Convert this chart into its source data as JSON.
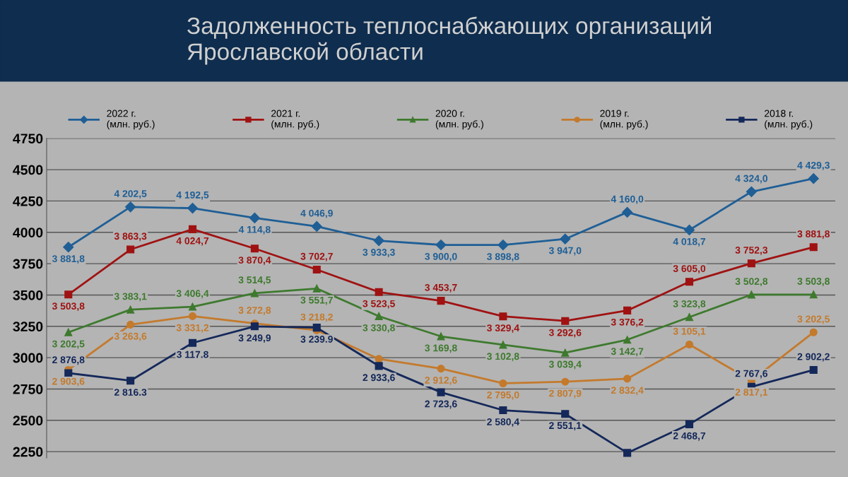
{
  "chart_data": {
    "type": "line",
    "title": "Задолженность теплоснабжающих организаций\nЯрославской области",
    "categories": [
      null,
      null,
      null,
      null,
      null,
      null,
      null,
      null,
      null,
      null,
      null,
      null,
      null
    ],
    "ylim": [
      2200,
      4750
    ],
    "yticks": [
      2250,
      2500,
      2750,
      3000,
      3250,
      3500,
      3750,
      4000,
      4250,
      4500,
      4750
    ],
    "grid": "y",
    "legend": "top",
    "line_style": "solid",
    "series": [
      {
        "name": "2022 г.\n(млн. руб.)",
        "color": "#1f5f96",
        "marker": "diamond",
        "values": [
          3881.8,
          4202.5,
          4192.5,
          4114.8,
          4046.9,
          3933.3,
          3900.0,
          3898.8,
          3947.0,
          4160.0,
          4018.7,
          4324.0,
          4429.3
        ],
        "value_labels": [
          "3 881,8",
          "4 202,5",
          "4 192,5",
          "4 114,8",
          "4 046,9",
          "3 933,3",
          "3 900,0",
          "3 898,8",
          "3 947,0",
          "4 160,0",
          "4 018,7",
          "4 324,0",
          "4 429,3"
        ]
      },
      {
        "name": "2021 г.\n(млн. руб.)",
        "color": "#a01212",
        "marker": "square",
        "values": [
          3503.8,
          3863.3,
          4024.7,
          3870.4,
          3702.7,
          3523.5,
          3453.7,
          3329.4,
          3292.6,
          3376.2,
          3605.0,
          3752.3,
          3881.8
        ],
        "value_labels": [
          "3 503,8",
          "3 863,3",
          "4 024,7",
          "3 870,4",
          "3 702,7",
          "3 523,5",
          "3 453,7",
          "3 329,4",
          "3 292,6",
          "3 376,2",
          "3 605,0",
          "3 752,3",
          "3 881,8"
        ]
      },
      {
        "name": "2020 г.\n(млн. руб.)",
        "color": "#3e7a2e",
        "marker": "triangle",
        "values": [
          3202.5,
          3383.1,
          3406.4,
          3514.5,
          3551.7,
          3330.8,
          3169.8,
          3102.8,
          3039.4,
          3142.7,
          3323.8,
          3502.8,
          3503.8
        ],
        "value_labels": [
          "3 202,5",
          "3 383,1",
          "3 406,4",
          "3 514,5",
          "3 551,7",
          "3 330,8",
          "3 169,8",
          "3 102,8",
          "3 039,4",
          "3 142,7",
          "3 323,8",
          "3 502,8",
          "3 503,8"
        ]
      },
      {
        "name": "2019 г.\n(млн. руб.)",
        "color": "#c47a2c",
        "marker": "circle",
        "values": [
          2903.6,
          3263.6,
          3331.2,
          3272.8,
          3218.2,
          2990,
          2912.6,
          2795.0,
          2807.9,
          2832.4,
          3105.1,
          2817.1,
          3202.5
        ],
        "value_labels": [
          "2 903,6",
          "3 263,6",
          "3 331,2",
          "3 272,8",
          "3 218,2",
          null,
          "2 912,6",
          "2 795,0",
          "2 807,9",
          "2 832,4",
          "3 105,1",
          "2 817,1",
          "3 202,5"
        ]
      },
      {
        "name": "2018 г.\n(млн. руб.)",
        "color": "#14285a",
        "marker": "square",
        "values": [
          2876.8,
          2816.3,
          3117.8,
          3249.9,
          3239.9,
          2933.6,
          2723.6,
          2580.4,
          2551.1,
          2240,
          2468.7,
          2767.6,
          2902.2
        ],
        "value_labels": [
          "2 876,8",
          "2 816.3",
          "3 117.8",
          "3 249,9",
          "3 239.9",
          "2 933,6",
          "2 723,6",
          "2 580,4",
          "2 551,1",
          null,
          "2 468,7",
          "2 767,6",
          "2 902,2"
        ]
      }
    ]
  }
}
